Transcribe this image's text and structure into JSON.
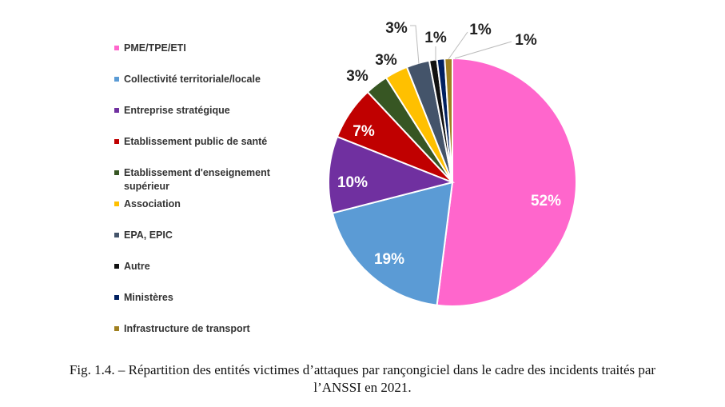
{
  "chart_data": {
    "type": "pie",
    "title": "",
    "start_angle": "top",
    "direction": "clockwise",
    "slices": [
      {
        "label": "PME/TPE/ETI",
        "value": 52,
        "data_label": "52%",
        "color": "#FF66CC"
      },
      {
        "label": "Collectivité territoriale/locale",
        "value": 19,
        "data_label": "19%",
        "color": "#5B9BD5"
      },
      {
        "label": "Entreprise stratégique",
        "value": 10,
        "data_label": "10%",
        "color": "#7030A0"
      },
      {
        "label": "Etablissement public de santé",
        "value": 7,
        "data_label": "7%",
        "color": "#C00000"
      },
      {
        "label": "Etablissement d'enseignement supérieur",
        "value": 3,
        "data_label": "3%",
        "color": "#375623"
      },
      {
        "label": "Association",
        "value": 3,
        "data_label": "3%",
        "color": "#FFC000"
      },
      {
        "label": "EPA, EPIC",
        "value": 3,
        "data_label": "3%",
        "color": "#44546A"
      },
      {
        "label": "Autre",
        "value": 1,
        "data_label": "1%",
        "color": "#111111"
      },
      {
        "label": "Ministères",
        "value": 1,
        "data_label": "1%",
        "color": "#002060"
      },
      {
        "label": "Infrastructure de transport",
        "value": 1,
        "data_label": "1%",
        "color": "#A08020"
      }
    ],
    "legend_placement": "left"
  },
  "caption": {
    "line1": "Fig. 1.4. – Répartition des entités victimes d’attaques par rançongiciel dans le cadre des incidents traités par",
    "line2": "l’ANSSI en 2021."
  }
}
